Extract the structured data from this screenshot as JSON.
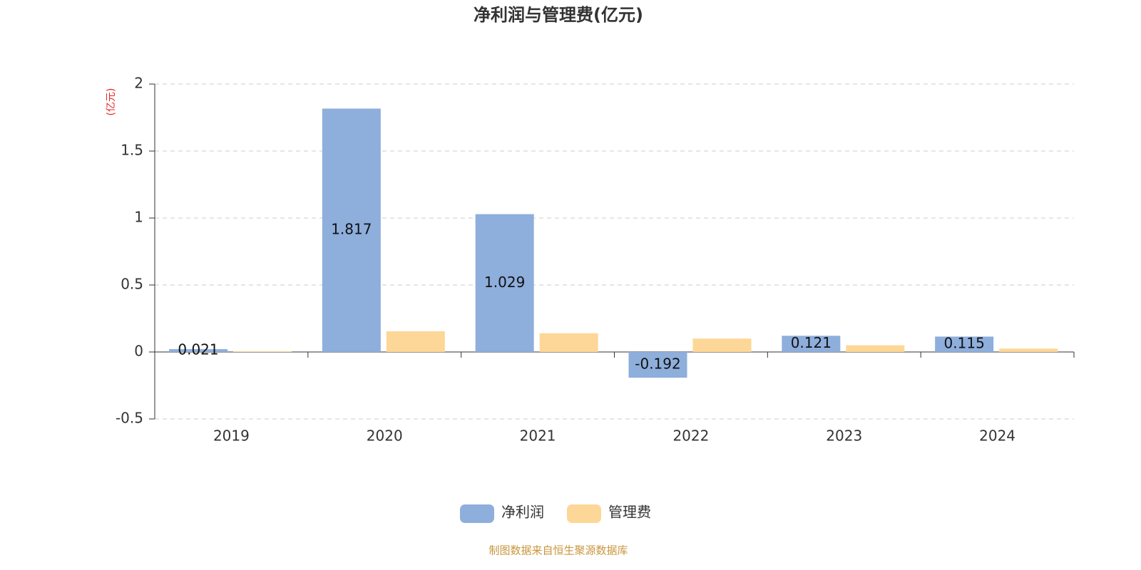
{
  "chart_data": {
    "type": "bar",
    "title": "净利润与管理费(亿元)",
    "y_unit": "(亿元)",
    "categories": [
      "2019",
      "2020",
      "2021",
      "2022",
      "2023",
      "2024"
    ],
    "series": [
      {
        "name": "净利润",
        "color": "#8eaedc",
        "values": [
          0.021,
          1.817,
          1.029,
          -0.192,
          0.121,
          0.115
        ],
        "show_labels": true
      },
      {
        "name": "管理费",
        "color": "#fdd797",
        "values": [
          0.005,
          0.155,
          0.14,
          0.1,
          0.05,
          0.025
        ],
        "show_labels": false
      }
    ],
    "ylim": [
      -0.5,
      2
    ],
    "yticks": [
      -0.5,
      0,
      0.5,
      1,
      1.5,
      2
    ],
    "grid": true,
    "legend": "bottom",
    "source": "制图数据来自恒生聚源数据库"
  }
}
